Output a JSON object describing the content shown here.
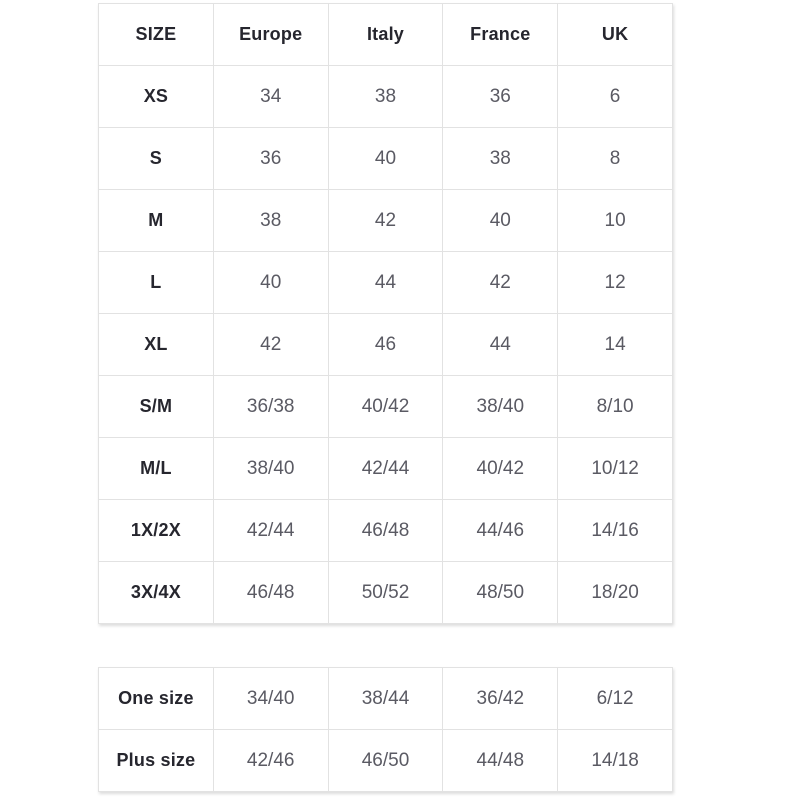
{
  "colors": {
    "header_text": "#26262e",
    "value_text": "#5a5a63",
    "border": "#e2e2e2"
  },
  "size_table": {
    "headers": [
      "SIZE",
      "Europe",
      "Italy",
      "France",
      "UK"
    ],
    "rows": [
      {
        "size": "XS",
        "values": [
          "34",
          "38",
          "36",
          "6"
        ]
      },
      {
        "size": "S",
        "values": [
          "36",
          "40",
          "38",
          "8"
        ]
      },
      {
        "size": "M",
        "values": [
          "38",
          "42",
          "40",
          "10"
        ]
      },
      {
        "size": "L",
        "values": [
          "40",
          "44",
          "42",
          "12"
        ]
      },
      {
        "size": "XL",
        "values": [
          "42",
          "46",
          "44",
          "14"
        ]
      },
      {
        "size": "S/M",
        "values": [
          "36/38",
          "40/42",
          "38/40",
          "8/10"
        ]
      },
      {
        "size": "M/L",
        "values": [
          "38/40",
          "42/44",
          "40/42",
          "10/12"
        ]
      },
      {
        "size": "1X/2X",
        "values": [
          "42/44",
          "46/48",
          "44/46",
          "14/16"
        ]
      },
      {
        "size": "3X/4X",
        "values": [
          "46/48",
          "50/52",
          "48/50",
          "18/20"
        ]
      }
    ]
  },
  "special_size_table": {
    "rows": [
      {
        "size": "One size",
        "values": [
          "34/40",
          "38/44",
          "36/42",
          "6/12"
        ]
      },
      {
        "size": "Plus size",
        "values": [
          "42/46",
          "46/50",
          "44/48",
          "14/18"
        ]
      }
    ]
  }
}
